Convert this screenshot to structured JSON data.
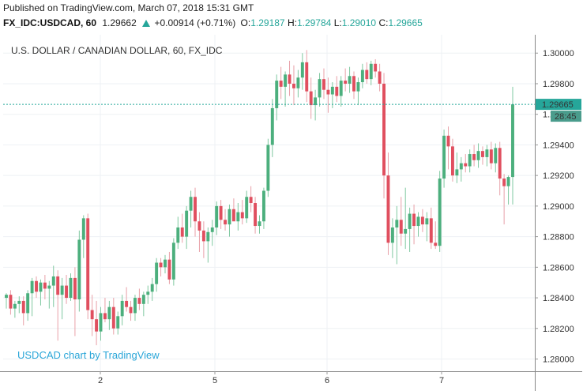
{
  "header": {
    "published_text": "Published on TradingView.com, March 07, 2018 15:31 GMT",
    "symbol": "FX_IDC:USDCAD, 60",
    "last": "1.29662",
    "change": "+0.00914 (+0.71%)",
    "open_label": "O:",
    "open": "1.29187",
    "high_label": "H:",
    "high": "1.29784",
    "low_label": "L:",
    "low": "1.29010",
    "close_label": "C:",
    "close": "1.29665"
  },
  "chart": {
    "series_title": "U.S. DOLLAR / CANADIAN DOLLAR, 60, FX_IDC",
    "watermark": "USDCAD chart by TradingView",
    "price_label": "1.29665",
    "countdown_label": "28:45"
  },
  "colors": {
    "up": "#26a69a",
    "up_candle": "#4caf7d",
    "down": "#e04f5f",
    "wick_up": "#7fc8a0",
    "wick_down": "#e8a0a8",
    "grid": "#eef1f4",
    "price_line": "#26a69a",
    "price_label_bg": "#26a69a",
    "countdown_bg": "#4a9c8c",
    "watermark": "#2aa6d8"
  },
  "chart_data": {
    "type": "candlestick",
    "title": "U.S. DOLLAR / CANADIAN DOLLAR, 60, FX_IDC",
    "ylim": [
      1.2792,
      1.3012
    ],
    "y_ticks": [
      "1.30000",
      "1.29800",
      "1.29600",
      "1.29400",
      "1.29200",
      "1.29000",
      "1.28800",
      "1.28600",
      "1.28400",
      "1.28200",
      "1.28000"
    ],
    "x_ticks": [
      "2",
      "5",
      "6",
      "7"
    ],
    "grid": true,
    "last_price": 1.29665,
    "candles": [
      {
        "o": 1.284,
        "h": 1.2843,
        "l": 1.2833,
        "c": 1.2842
      },
      {
        "o": 1.2842,
        "h": 1.2845,
        "l": 1.2829,
        "c": 1.2833
      },
      {
        "o": 1.2833,
        "h": 1.2838,
        "l": 1.2827,
        "c": 1.2836
      },
      {
        "o": 1.2836,
        "h": 1.2841,
        "l": 1.283,
        "c": 1.2838
      },
      {
        "o": 1.2838,
        "h": 1.2841,
        "l": 1.2822,
        "c": 1.283
      },
      {
        "o": 1.283,
        "h": 1.2845,
        "l": 1.2825,
        "c": 1.2843
      },
      {
        "o": 1.2843,
        "h": 1.2853,
        "l": 1.2828,
        "c": 1.2851
      },
      {
        "o": 1.2851,
        "h": 1.2854,
        "l": 1.284,
        "c": 1.2844
      },
      {
        "o": 1.2844,
        "h": 1.2852,
        "l": 1.2835,
        "c": 1.285
      },
      {
        "o": 1.285,
        "h": 1.2855,
        "l": 1.2839,
        "c": 1.2846
      },
      {
        "o": 1.2846,
        "h": 1.2851,
        "l": 1.2833,
        "c": 1.2848
      },
      {
        "o": 1.2848,
        "h": 1.2861,
        "l": 1.2834,
        "c": 1.2854
      },
      {
        "o": 1.2854,
        "h": 1.2858,
        "l": 1.2812,
        "c": 1.2842
      },
      {
        "o": 1.2842,
        "h": 1.2853,
        "l": 1.2826,
        "c": 1.2848
      },
      {
        "o": 1.2848,
        "h": 1.2855,
        "l": 1.2836,
        "c": 1.284
      },
      {
        "o": 1.284,
        "h": 1.2856,
        "l": 1.2838,
        "c": 1.2853
      },
      {
        "o": 1.2853,
        "h": 1.286,
        "l": 1.2815,
        "c": 1.2839
      },
      {
        "o": 1.2839,
        "h": 1.2884,
        "l": 1.2831,
        "c": 1.2878
      },
      {
        "o": 1.2878,
        "h": 1.2894,
        "l": 1.2866,
        "c": 1.2892
      },
      {
        "o": 1.2892,
        "h": 1.2895,
        "l": 1.2826,
        "c": 1.2832
      },
      {
        "o": 1.2832,
        "h": 1.2842,
        "l": 1.2815,
        "c": 1.2826
      },
      {
        "o": 1.2826,
        "h": 1.2838,
        "l": 1.2809,
        "c": 1.2818
      },
      {
        "o": 1.2818,
        "h": 1.2834,
        "l": 1.2812,
        "c": 1.283
      },
      {
        "o": 1.283,
        "h": 1.284,
        "l": 1.2824,
        "c": 1.2826
      },
      {
        "o": 1.2826,
        "h": 1.2838,
        "l": 1.2819,
        "c": 1.2834
      },
      {
        "o": 1.2834,
        "h": 1.284,
        "l": 1.2816,
        "c": 1.282
      },
      {
        "o": 1.282,
        "h": 1.2831,
        "l": 1.2816,
        "c": 1.2828
      },
      {
        "o": 1.2828,
        "h": 1.2842,
        "l": 1.2822,
        "c": 1.2838
      },
      {
        "o": 1.2838,
        "h": 1.2847,
        "l": 1.2831,
        "c": 1.2834
      },
      {
        "o": 1.2834,
        "h": 1.2838,
        "l": 1.2825,
        "c": 1.283
      },
      {
        "o": 1.283,
        "h": 1.2842,
        "l": 1.2825,
        "c": 1.284
      },
      {
        "o": 1.284,
        "h": 1.2846,
        "l": 1.2832,
        "c": 1.2836
      },
      {
        "o": 1.2836,
        "h": 1.2844,
        "l": 1.2828,
        "c": 1.2842
      },
      {
        "o": 1.2842,
        "h": 1.2848,
        "l": 1.2836,
        "c": 1.2844
      },
      {
        "o": 1.2844,
        "h": 1.2853,
        "l": 1.2838,
        "c": 1.2849
      },
      {
        "o": 1.2849,
        "h": 1.2866,
        "l": 1.2844,
        "c": 1.2863
      },
      {
        "o": 1.2863,
        "h": 1.2866,
        "l": 1.2854,
        "c": 1.286
      },
      {
        "o": 1.286,
        "h": 1.2868,
        "l": 1.2856,
        "c": 1.2865
      },
      {
        "o": 1.2865,
        "h": 1.287,
        "l": 1.2849,
        "c": 1.2852
      },
      {
        "o": 1.2852,
        "h": 1.2879,
        "l": 1.2848,
        "c": 1.2876
      },
      {
        "o": 1.2876,
        "h": 1.2893,
        "l": 1.2872,
        "c": 1.2886
      },
      {
        "o": 1.2886,
        "h": 1.2895,
        "l": 1.2876,
        "c": 1.288
      },
      {
        "o": 1.288,
        "h": 1.29,
        "l": 1.2872,
        "c": 1.2897
      },
      {
        "o": 1.2897,
        "h": 1.291,
        "l": 1.2886,
        "c": 1.2906
      },
      {
        "o": 1.2906,
        "h": 1.2912,
        "l": 1.288,
        "c": 1.289
      },
      {
        "o": 1.289,
        "h": 1.2896,
        "l": 1.287,
        "c": 1.2884
      },
      {
        "o": 1.2884,
        "h": 1.289,
        "l": 1.2866,
        "c": 1.2877
      },
      {
        "o": 1.2877,
        "h": 1.2886,
        "l": 1.2863,
        "c": 1.2883
      },
      {
        "o": 1.2883,
        "h": 1.2891,
        "l": 1.2874,
        "c": 1.2886
      },
      {
        "o": 1.2886,
        "h": 1.2903,
        "l": 1.2881,
        "c": 1.29
      },
      {
        "o": 1.29,
        "h": 1.2904,
        "l": 1.2885,
        "c": 1.2891
      },
      {
        "o": 1.2891,
        "h": 1.2898,
        "l": 1.2884,
        "c": 1.2888
      },
      {
        "o": 1.2888,
        "h": 1.2901,
        "l": 1.288,
        "c": 1.2898
      },
      {
        "o": 1.2898,
        "h": 1.2905,
        "l": 1.2891,
        "c": 1.289
      },
      {
        "o": 1.289,
        "h": 1.2902,
        "l": 1.2884,
        "c": 1.2896
      },
      {
        "o": 1.2896,
        "h": 1.2904,
        "l": 1.2888,
        "c": 1.2892
      },
      {
        "o": 1.2892,
        "h": 1.291,
        "l": 1.2889,
        "c": 1.2906
      },
      {
        "o": 1.2906,
        "h": 1.2913,
        "l": 1.2896,
        "c": 1.2902
      },
      {
        "o": 1.2902,
        "h": 1.2906,
        "l": 1.2882,
        "c": 1.2887
      },
      {
        "o": 1.2887,
        "h": 1.2894,
        "l": 1.2882,
        "c": 1.289
      },
      {
        "o": 1.289,
        "h": 1.2912,
        "l": 1.2885,
        "c": 1.291
      },
      {
        "o": 1.291,
        "h": 1.2944,
        "l": 1.2906,
        "c": 1.294
      },
      {
        "o": 1.294,
        "h": 1.297,
        "l": 1.2932,
        "c": 1.2964
      },
      {
        "o": 1.2964,
        "h": 1.2986,
        "l": 1.2956,
        "c": 1.2982
      },
      {
        "o": 1.2982,
        "h": 1.2991,
        "l": 1.297,
        "c": 1.2978
      },
      {
        "o": 1.2978,
        "h": 1.2988,
        "l": 1.2965,
        "c": 1.2986
      },
      {
        "o": 1.2986,
        "h": 1.2995,
        "l": 1.2972,
        "c": 1.298
      },
      {
        "o": 1.298,
        "h": 1.2992,
        "l": 1.2966,
        "c": 1.2977
      },
      {
        "o": 1.2977,
        "h": 1.2989,
        "l": 1.2971,
        "c": 1.2984
      },
      {
        "o": 1.2984,
        "h": 1.3,
        "l": 1.2976,
        "c": 1.2994
      },
      {
        "o": 1.2994,
        "h": 1.3002,
        "l": 1.2968,
        "c": 1.2975
      },
      {
        "o": 1.2975,
        "h": 1.2984,
        "l": 1.2957,
        "c": 1.2966
      },
      {
        "o": 1.2966,
        "h": 1.2976,
        "l": 1.2956,
        "c": 1.2971
      },
      {
        "o": 1.2971,
        "h": 1.2987,
        "l": 1.2965,
        "c": 1.2983
      },
      {
        "o": 1.2983,
        "h": 1.299,
        "l": 1.297,
        "c": 1.2976
      },
      {
        "o": 1.2976,
        "h": 1.2984,
        "l": 1.2961,
        "c": 1.2973
      },
      {
        "o": 1.2973,
        "h": 1.2981,
        "l": 1.2964,
        "c": 1.2978
      },
      {
        "o": 1.2978,
        "h": 1.2985,
        "l": 1.2968,
        "c": 1.2972
      },
      {
        "o": 1.2972,
        "h": 1.2985,
        "l": 1.2965,
        "c": 1.2982
      },
      {
        "o": 1.2982,
        "h": 1.299,
        "l": 1.2975,
        "c": 1.298
      },
      {
        "o": 1.298,
        "h": 1.2991,
        "l": 1.2974,
        "c": 1.2985
      },
      {
        "o": 1.2985,
        "h": 1.2988,
        "l": 1.297,
        "c": 1.2975
      },
      {
        "o": 1.2975,
        "h": 1.2984,
        "l": 1.2966,
        "c": 1.2981
      },
      {
        "o": 1.2981,
        "h": 1.2993,
        "l": 1.2977,
        "c": 1.2989
      },
      {
        "o": 1.2989,
        "h": 1.2994,
        "l": 1.298,
        "c": 1.2983
      },
      {
        "o": 1.2983,
        "h": 1.2995,
        "l": 1.2979,
        "c": 1.2993
      },
      {
        "o": 1.2993,
        "h": 1.2996,
        "l": 1.2984,
        "c": 1.2988
      },
      {
        "o": 1.2988,
        "h": 1.2993,
        "l": 1.2975,
        "c": 1.298
      },
      {
        "o": 1.298,
        "h": 1.2987,
        "l": 1.2905,
        "c": 1.292
      },
      {
        "o": 1.292,
        "h": 1.2935,
        "l": 1.2868,
        "c": 1.2876
      },
      {
        "o": 1.2876,
        "h": 1.2892,
        "l": 1.2866,
        "c": 1.2886
      },
      {
        "o": 1.2886,
        "h": 1.29,
        "l": 1.2862,
        "c": 1.2891
      },
      {
        "o": 1.2891,
        "h": 1.2906,
        "l": 1.2874,
        "c": 1.2882
      },
      {
        "o": 1.2882,
        "h": 1.2912,
        "l": 1.2872,
        "c": 1.2885
      },
      {
        "o": 1.2885,
        "h": 1.2899,
        "l": 1.287,
        "c": 1.2895
      },
      {
        "o": 1.2895,
        "h": 1.2901,
        "l": 1.2875,
        "c": 1.2887
      },
      {
        "o": 1.2887,
        "h": 1.2896,
        "l": 1.288,
        "c": 1.2893
      },
      {
        "o": 1.2893,
        "h": 1.2898,
        "l": 1.2883,
        "c": 1.2888
      },
      {
        "o": 1.2888,
        "h": 1.2896,
        "l": 1.2877,
        "c": 1.2892
      },
      {
        "o": 1.2892,
        "h": 1.2899,
        "l": 1.2872,
        "c": 1.2876
      },
      {
        "o": 1.2876,
        "h": 1.289,
        "l": 1.2872,
        "c": 1.2874
      },
      {
        "o": 1.2874,
        "h": 1.2923,
        "l": 1.287,
        "c": 1.2918
      },
      {
        "o": 1.2918,
        "h": 1.295,
        "l": 1.2912,
        "c": 1.2946
      },
      {
        "o": 1.2946,
        "h": 1.2952,
        "l": 1.2924,
        "c": 1.2939
      },
      {
        "o": 1.2939,
        "h": 1.2944,
        "l": 1.2916,
        "c": 1.292
      },
      {
        "o": 1.292,
        "h": 1.2935,
        "l": 1.2915,
        "c": 1.2924
      },
      {
        "o": 1.2924,
        "h": 1.2932,
        "l": 1.2916,
        "c": 1.2928
      },
      {
        "o": 1.2928,
        "h": 1.2934,
        "l": 1.2922,
        "c": 1.2926
      },
      {
        "o": 1.2926,
        "h": 1.2937,
        "l": 1.2922,
        "c": 1.2934
      },
      {
        "o": 1.2934,
        "h": 1.294,
        "l": 1.2926,
        "c": 1.293
      },
      {
        "o": 1.293,
        "h": 1.2941,
        "l": 1.2925,
        "c": 1.2936
      },
      {
        "o": 1.2936,
        "h": 1.2939,
        "l": 1.2927,
        "c": 1.2932
      },
      {
        "o": 1.2932,
        "h": 1.294,
        "l": 1.2926,
        "c": 1.2937
      },
      {
        "o": 1.2937,
        "h": 1.2942,
        "l": 1.2924,
        "c": 1.2928
      },
      {
        "o": 1.2928,
        "h": 1.2941,
        "l": 1.2922,
        "c": 1.2938
      },
      {
        "o": 1.2938,
        "h": 1.2942,
        "l": 1.2907,
        "c": 1.2918
      },
      {
        "o": 1.2918,
        "h": 1.2921,
        "l": 1.2888,
        "c": 1.2913
      },
      {
        "o": 1.2913,
        "h": 1.292,
        "l": 1.2901,
        "c": 1.2919
      },
      {
        "o": 1.2919,
        "h": 1.2978,
        "l": 1.2901,
        "c": 1.29665
      }
    ]
  }
}
